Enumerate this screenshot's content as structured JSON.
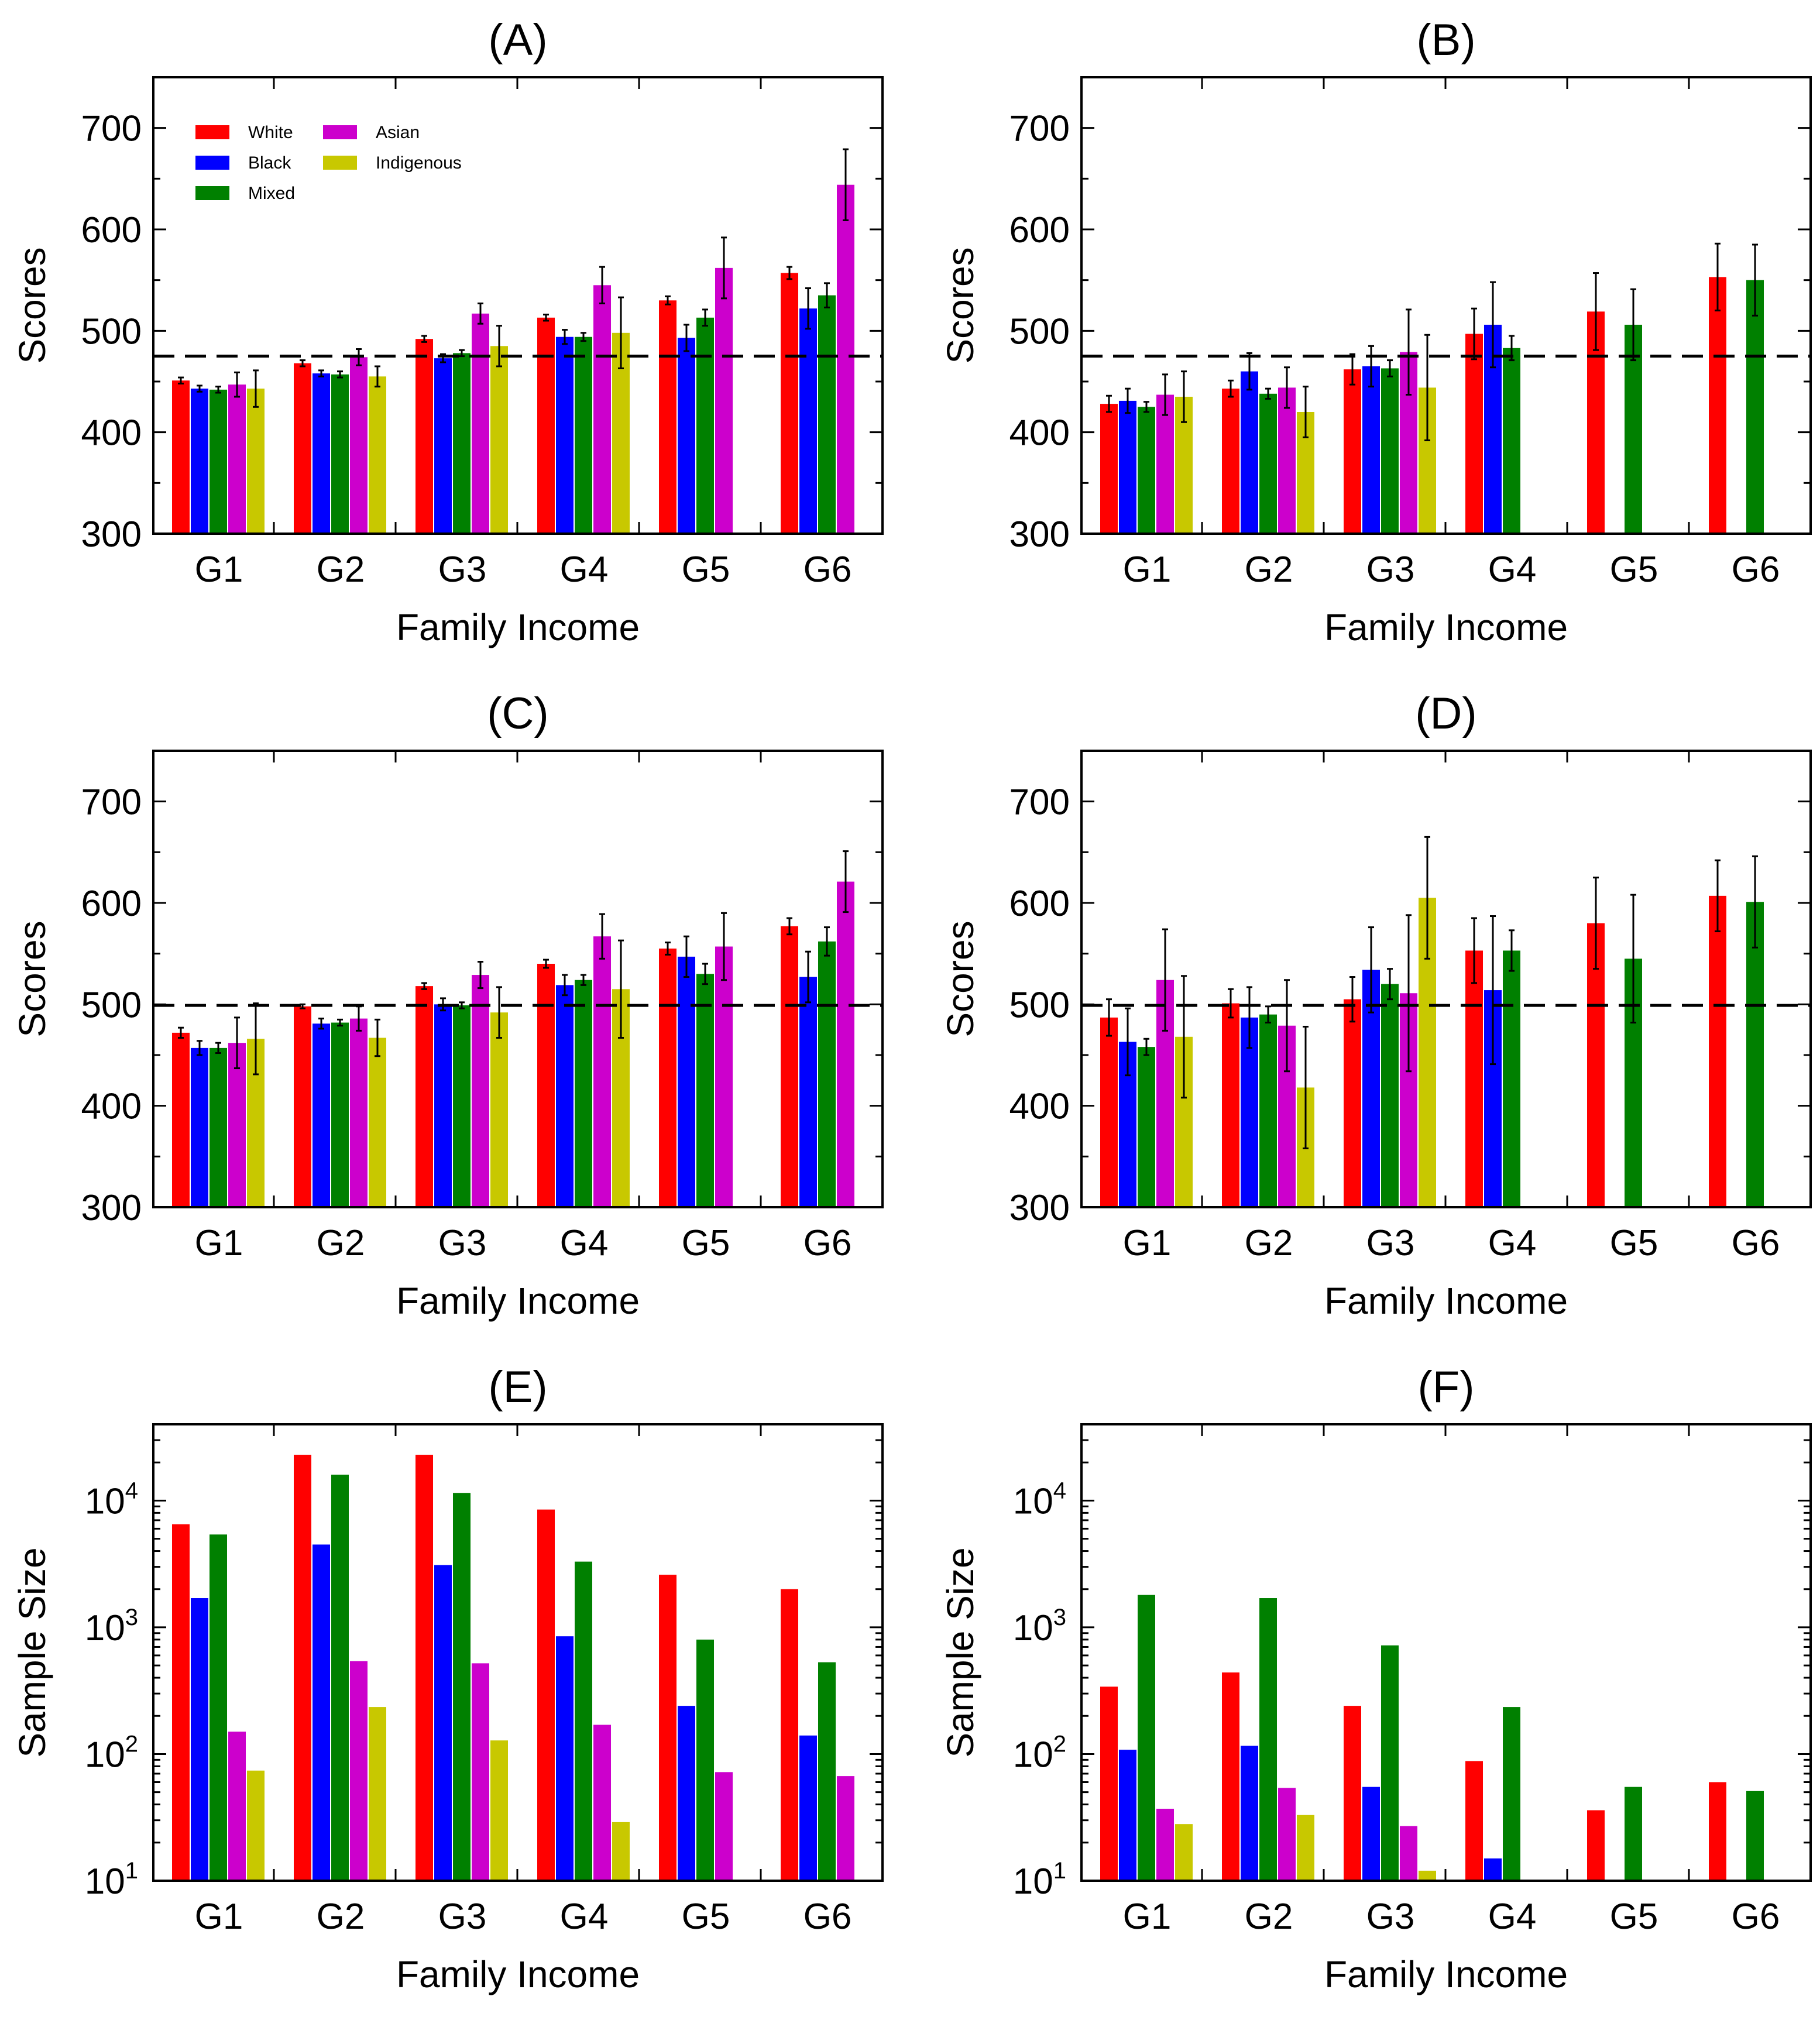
{
  "colors": {
    "White": "#ff0000",
    "Black": "#0000ff",
    "Mixed": "#008000",
    "Asian": "#cc00cc",
    "Indigenous": "#c8c800",
    "reference_line": "#000000"
  },
  "legend": {
    "panel": "(A)",
    "columns": [
      [
        "White",
        "Black",
        "Mixed"
      ],
      [
        "Asian",
        "Indigenous"
      ]
    ]
  },
  "chart_data": [
    {
      "panel": "(A)",
      "type": "bar",
      "title": "(A)",
      "xlabel": "Family Income",
      "ylabel": "Scores",
      "scale": "linear",
      "ylim": [
        300,
        750
      ],
      "yticks": [
        300,
        400,
        500,
        600,
        700
      ],
      "ytick_labels": [
        "300",
        "400",
        "500",
        "600",
        "700"
      ],
      "reference_line": 475,
      "categories": [
        "G1",
        "G2",
        "G3",
        "G4",
        "G5",
        "G6"
      ],
      "series": [
        {
          "name": "White",
          "values": [
            451,
            468,
            492,
            513,
            530,
            557
          ],
          "errors": [
            3,
            3,
            3,
            3,
            4,
            6
          ]
        },
        {
          "name": "Black",
          "values": [
            443,
            458,
            473,
            494,
            493,
            522
          ],
          "errors": [
            3,
            3,
            4,
            7,
            13,
            20
          ]
        },
        {
          "name": "Mixed",
          "values": [
            442,
            457,
            478,
            494,
            513,
            535
          ],
          "errors": [
            3,
            3,
            3,
            4,
            8,
            12
          ]
        },
        {
          "name": "Asian",
          "values": [
            447,
            474,
            517,
            545,
            562,
            644
          ],
          "errors": [
            12,
            8,
            10,
            18,
            30,
            35
          ]
        },
        {
          "name": "Indigenous",
          "values": [
            443,
            455,
            485,
            498,
            null,
            null
          ],
          "errors": [
            18,
            10,
            20,
            35,
            null,
            null
          ]
        }
      ]
    },
    {
      "panel": "(B)",
      "type": "bar",
      "title": "(B)",
      "xlabel": "Family Income",
      "ylabel": "Scores",
      "scale": "linear",
      "ylim": [
        300,
        750
      ],
      "yticks": [
        300,
        400,
        500,
        600,
        700
      ],
      "ytick_labels": [
        "300",
        "400",
        "500",
        "600",
        "700"
      ],
      "reference_line": 475,
      "categories": [
        "G1",
        "G2",
        "G3",
        "G4",
        "G5",
        "G6"
      ],
      "series": [
        {
          "name": "White",
          "values": [
            428,
            443,
            462,
            497,
            519,
            553
          ],
          "errors": [
            8,
            8,
            15,
            25,
            38,
            33
          ]
        },
        {
          "name": "Black",
          "values": [
            431,
            460,
            465,
            506,
            null,
            null
          ],
          "errors": [
            12,
            18,
            20,
            42,
            null,
            null
          ]
        },
        {
          "name": "Mixed",
          "values": [
            425,
            438,
            463,
            483,
            506,
            550
          ],
          "errors": [
            5,
            5,
            8,
            12,
            35,
            35
          ]
        },
        {
          "name": "Asian",
          "values": [
            437,
            444,
            479,
            null,
            null,
            null
          ],
          "errors": [
            20,
            20,
            42,
            null,
            null,
            null
          ]
        },
        {
          "name": "Indigenous",
          "values": [
            435,
            420,
            444,
            null,
            null,
            null
          ],
          "errors": [
            25,
            25,
            52,
            null,
            null,
            null
          ]
        }
      ]
    },
    {
      "panel": "(C)",
      "type": "bar",
      "title": "(C)",
      "xlabel": "Family Income",
      "ylabel": "Scores",
      "scale": "linear",
      "ylim": [
        300,
        750
      ],
      "yticks": [
        300,
        400,
        500,
        600,
        700
      ],
      "ytick_labels": [
        "300",
        "400",
        "500",
        "600",
        "700"
      ],
      "reference_line": 499,
      "categories": [
        "G1",
        "G2",
        "G3",
        "G4",
        "G5",
        "G6"
      ],
      "series": [
        {
          "name": "White",
          "values": [
            472,
            498,
            518,
            540,
            555,
            577
          ],
          "errors": [
            5,
            2,
            3,
            4,
            6,
            8
          ]
        },
        {
          "name": "Black",
          "values": [
            457,
            481,
            500,
            519,
            547,
            527
          ],
          "errors": [
            7,
            5,
            6,
            10,
            20,
            25
          ]
        },
        {
          "name": "Mixed",
          "values": [
            457,
            482,
            499,
            524,
            530,
            562
          ],
          "errors": [
            5,
            3,
            3,
            5,
            10,
            14
          ]
        },
        {
          "name": "Asian",
          "values": [
            462,
            486,
            529,
            567,
            557,
            621
          ],
          "errors": [
            25,
            12,
            13,
            22,
            33,
            30
          ]
        },
        {
          "name": "Indigenous",
          "values": [
            466,
            467,
            492,
            515,
            null,
            null
          ],
          "errors": [
            35,
            18,
            25,
            48,
            null,
            null
          ]
        }
      ]
    },
    {
      "panel": "(D)",
      "type": "bar",
      "title": "(D)",
      "xlabel": "Family Income",
      "ylabel": "Scores",
      "scale": "linear",
      "ylim": [
        300,
        750
      ],
      "yticks": [
        300,
        400,
        500,
        600,
        700
      ],
      "ytick_labels": [
        "300",
        "400",
        "500",
        "600",
        "700"
      ],
      "reference_line": 499,
      "categories": [
        "G1",
        "G2",
        "G3",
        "G4",
        "G5",
        "G6"
      ],
      "series": [
        {
          "name": "White",
          "values": [
            487,
            501,
            505,
            553,
            580,
            607
          ],
          "errors": [
            18,
            14,
            22,
            32,
            45,
            35
          ]
        },
        {
          "name": "Black",
          "values": [
            463,
            487,
            534,
            514,
            null,
            null
          ],
          "errors": [
            33,
            30,
            42,
            73,
            null,
            null
          ]
        },
        {
          "name": "Mixed",
          "values": [
            458,
            490,
            520,
            553,
            545,
            601
          ],
          "errors": [
            8,
            8,
            15,
            20,
            63,
            45
          ]
        },
        {
          "name": "Asian",
          "values": [
            524,
            479,
            511,
            null,
            null,
            null
          ],
          "errors": [
            50,
            45,
            77,
            null,
            null,
            null
          ]
        },
        {
          "name": "Indigenous",
          "values": [
            468,
            418,
            605,
            null,
            null,
            null
          ],
          "errors": [
            60,
            60,
            60,
            null,
            null,
            null
          ]
        }
      ]
    },
    {
      "panel": "(E)",
      "type": "bar",
      "title": "(E)",
      "xlabel": "Family Income",
      "ylabel": "Sample Size",
      "scale": "log",
      "ylim": [
        10,
        40000
      ],
      "yticks": [
        10,
        100,
        1000,
        10000
      ],
      "ytick_labels": [
        {
          "base": "10",
          "exp": "1"
        },
        {
          "base": "10",
          "exp": "2"
        },
        {
          "base": "10",
          "exp": "3"
        },
        {
          "base": "10",
          "exp": "4"
        }
      ],
      "reference_line": null,
      "categories": [
        "G1",
        "G2",
        "G3",
        "G4",
        "G5",
        "G6"
      ],
      "series": [
        {
          "name": "White",
          "values": [
            6500,
            23000,
            23000,
            8500,
            2600,
            2000
          ]
        },
        {
          "name": "Black",
          "values": [
            1700,
            4500,
            3100,
            850,
            240,
            140
          ]
        },
        {
          "name": "Mixed",
          "values": [
            5400,
            16000,
            11500,
            3300,
            800,
            530
          ]
        },
        {
          "name": "Asian",
          "values": [
            150,
            540,
            520,
            170,
            72,
            67
          ]
        },
        {
          "name": "Indigenous",
          "values": [
            74,
            235,
            128,
            29,
            null,
            null
          ]
        }
      ]
    },
    {
      "panel": "(F)",
      "type": "bar",
      "title": "(F)",
      "xlabel": "Family Income",
      "ylabel": "Sample Size",
      "scale": "log",
      "ylim": [
        10,
        40000
      ],
      "yticks": [
        10,
        100,
        1000,
        10000
      ],
      "ytick_labels": [
        {
          "base": "10",
          "exp": "1"
        },
        {
          "base": "10",
          "exp": "2"
        },
        {
          "base": "10",
          "exp": "3"
        },
        {
          "base": "10",
          "exp": "4"
        }
      ],
      "reference_line": null,
      "categories": [
        "G1",
        "G2",
        "G3",
        "G4",
        "G5",
        "G6"
      ],
      "series": [
        {
          "name": "White",
          "values": [
            340,
            440,
            240,
            88,
            36,
            60
          ]
        },
        {
          "name": "Black",
          "values": [
            108,
            116,
            55,
            15,
            null,
            null
          ]
        },
        {
          "name": "Mixed",
          "values": [
            1800,
            1700,
            720,
            235,
            55,
            51
          ]
        },
        {
          "name": "Asian",
          "values": [
            37,
            54,
            27,
            null,
            null,
            null
          ]
        },
        {
          "name": "Indigenous",
          "values": [
            28,
            33,
            12,
            null,
            null,
            null
          ]
        }
      ]
    }
  ]
}
